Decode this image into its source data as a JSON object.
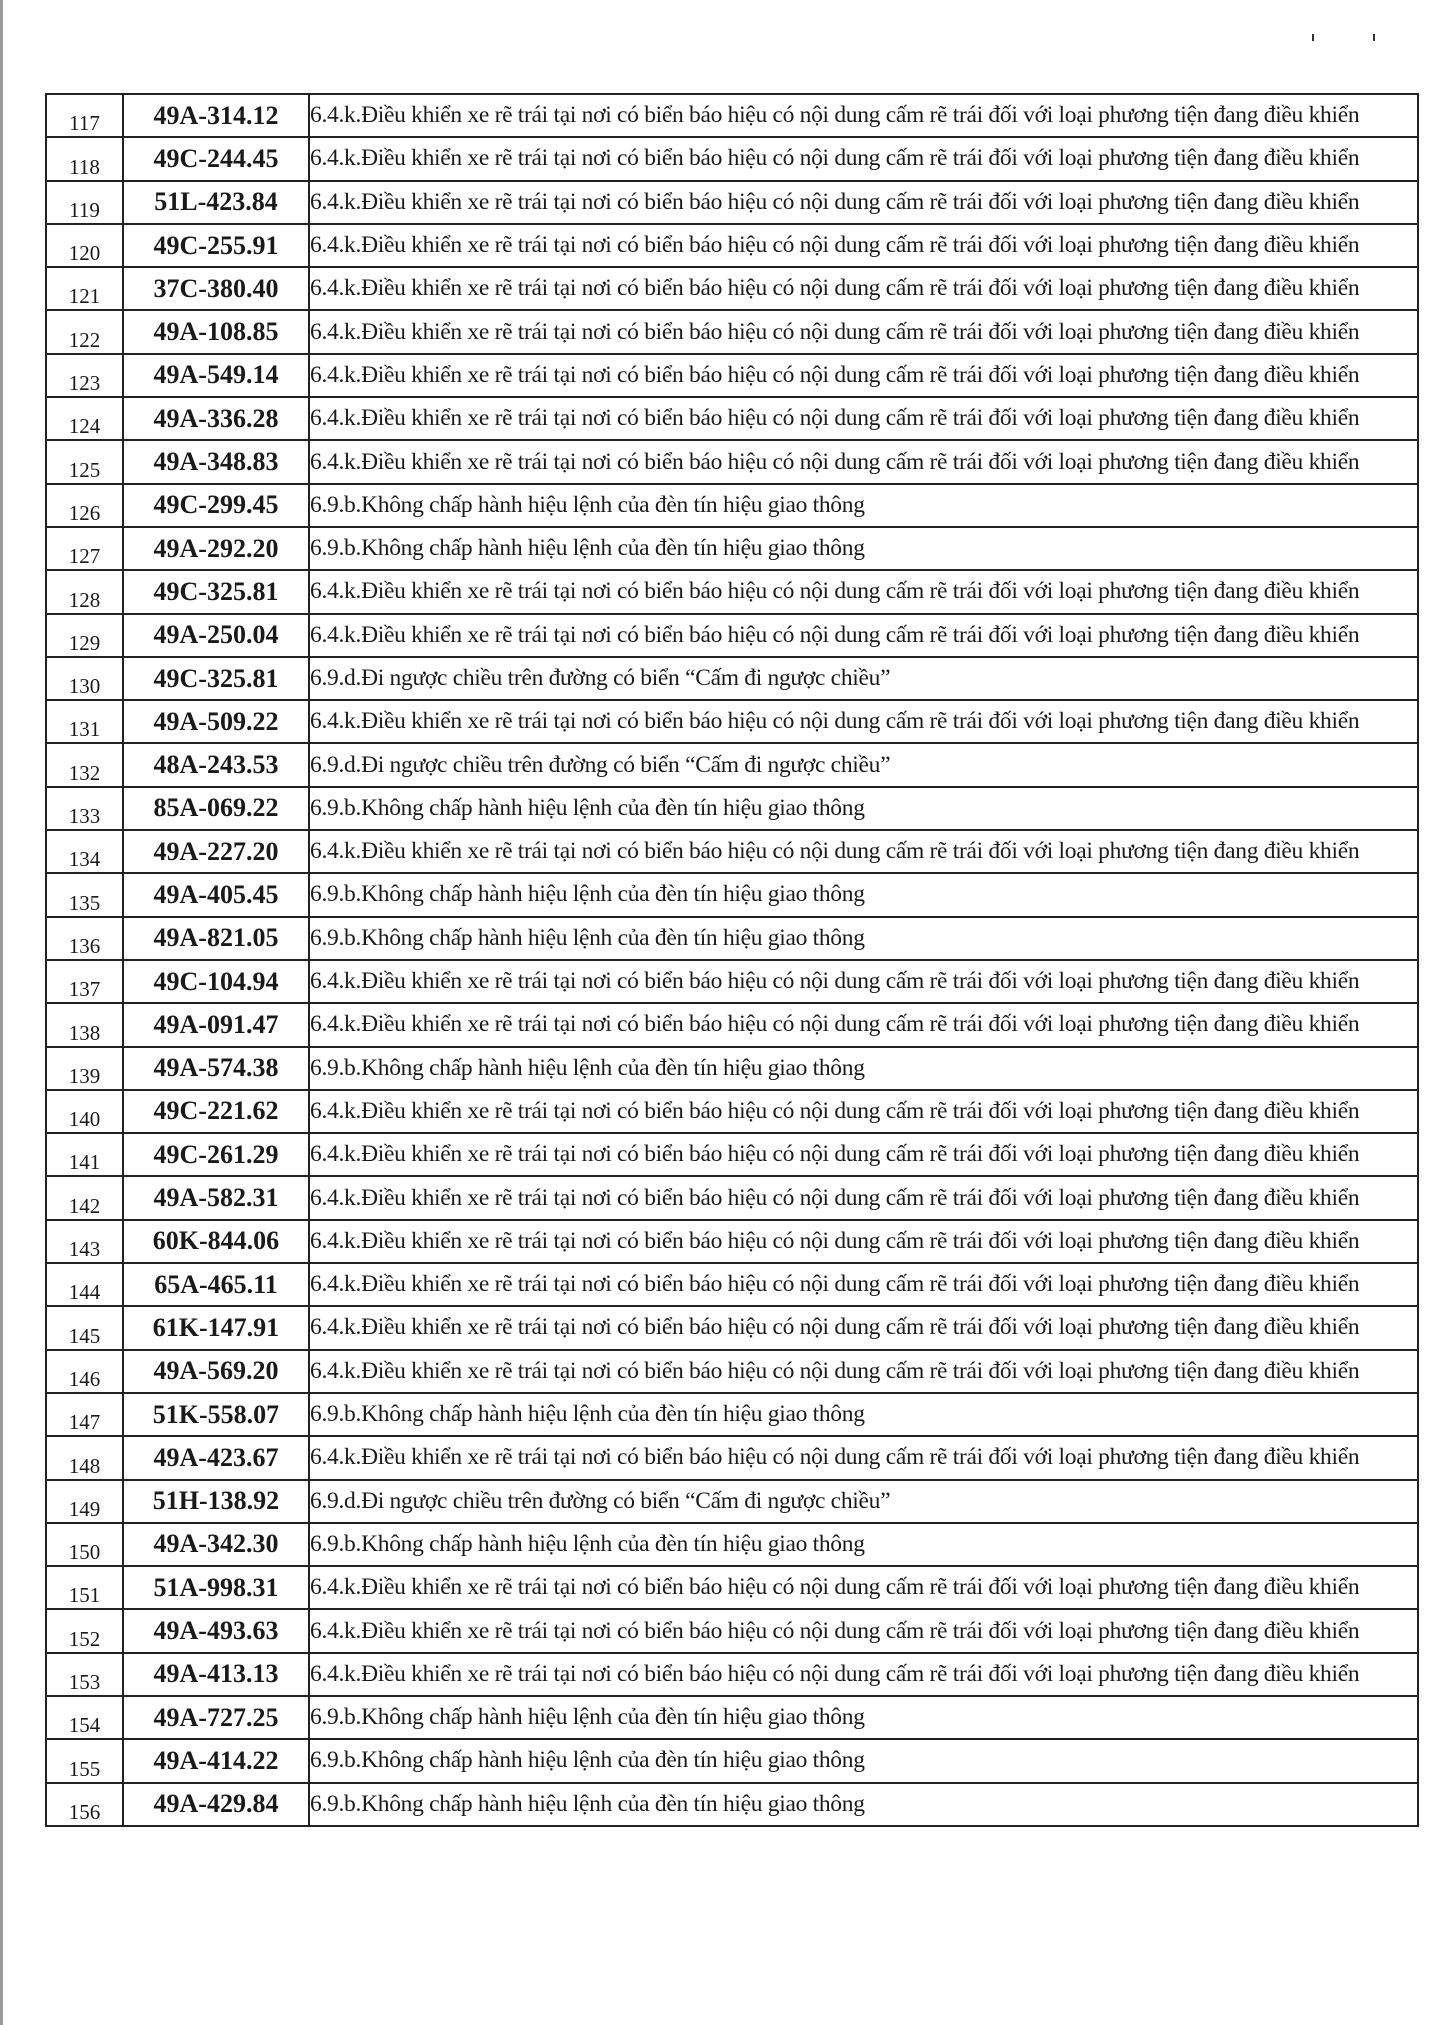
{
  "document": {
    "rows": [
      {
        "no": "117",
        "plate": "49A-314.12",
        "violation": "6.4.k.Điều khiển xe rẽ trái tại nơi có biển báo hiệu có nội dung cấm rẽ trái đối với loại phương tiện đang điều khiển"
      },
      {
        "no": "118",
        "plate": "49C-244.45",
        "violation": "6.4.k.Điều khiển xe rẽ trái tại nơi có biển báo hiệu có nội dung cấm rẽ trái đối với loại phương tiện đang điều khiển"
      },
      {
        "no": "119",
        "plate": "51L-423.84",
        "violation": "6.4.k.Điều khiển xe rẽ trái tại nơi có biển báo hiệu có nội dung cấm rẽ trái đối với loại phương tiện đang điều khiển"
      },
      {
        "no": "120",
        "plate": "49C-255.91",
        "violation": "6.4.k.Điều khiển xe rẽ trái tại nơi có biển báo hiệu có nội dung cấm rẽ trái đối với loại phương tiện đang điều khiển"
      },
      {
        "no": "121",
        "plate": "37C-380.40",
        "violation": "6.4.k.Điều khiển xe rẽ trái tại nơi có biển báo hiệu có nội dung cấm rẽ trái đối với loại phương tiện đang điều khiển"
      },
      {
        "no": "122",
        "plate": "49A-108.85",
        "violation": "6.4.k.Điều khiển xe rẽ trái tại nơi có biển báo hiệu có nội dung cấm rẽ trái đối với loại phương tiện đang điều khiển"
      },
      {
        "no": "123",
        "plate": "49A-549.14",
        "violation": "6.4.k.Điều khiển xe rẽ trái tại nơi có biển báo hiệu có nội dung cấm rẽ trái đối với loại phương tiện đang điều khiển"
      },
      {
        "no": "124",
        "plate": "49A-336.28",
        "violation": "6.4.k.Điều khiển xe rẽ trái tại nơi có biển báo hiệu có nội dung cấm rẽ trái đối với loại phương tiện đang điều khiển"
      },
      {
        "no": "125",
        "plate": "49A-348.83",
        "violation": "6.4.k.Điều khiển xe rẽ trái tại nơi có biển báo hiệu có nội dung cấm rẽ trái đối với loại phương tiện đang điều khiển"
      },
      {
        "no": "126",
        "plate": "49C-299.45",
        "violation": "6.9.b.Không chấp hành hiệu lệnh của đèn tín hiệu giao thông"
      },
      {
        "no": "127",
        "plate": "49A-292.20",
        "violation": "6.9.b.Không chấp hành hiệu lệnh của đèn tín hiệu giao thông"
      },
      {
        "no": "128",
        "plate": "49C-325.81",
        "violation": "6.4.k.Điều khiển xe rẽ trái tại nơi có biển báo hiệu có nội dung cấm rẽ trái đối với loại phương tiện đang điều khiển"
      },
      {
        "no": "129",
        "plate": "49A-250.04",
        "violation": "6.4.k.Điều khiển xe rẽ trái tại nơi có biển báo hiệu có nội dung cấm rẽ trái đối với loại phương tiện đang điều khiển"
      },
      {
        "no": "130",
        "plate": "49C-325.81",
        "violation": "6.9.d.Đi ngược chiều trên đường có biển “Cấm đi ngược chiều”"
      },
      {
        "no": "131",
        "plate": "49A-509.22",
        "violation": "6.4.k.Điều khiển xe rẽ trái tại nơi có biển báo hiệu có nội dung cấm rẽ trái đối với loại phương tiện đang điều khiển"
      },
      {
        "no": "132",
        "plate": "48A-243.53",
        "violation": "6.9.d.Đi ngược chiều trên đường có biển “Cấm đi ngược chiều”"
      },
      {
        "no": "133",
        "plate": "85A-069.22",
        "violation": "6.9.b.Không chấp hành hiệu lệnh của đèn tín hiệu giao thông"
      },
      {
        "no": "134",
        "plate": "49A-227.20",
        "violation": "6.4.k.Điều khiển xe rẽ trái tại nơi có biển báo hiệu có nội dung cấm rẽ trái đối với loại phương tiện đang điều khiển"
      },
      {
        "no": "135",
        "plate": "49A-405.45",
        "violation": "6.9.b.Không chấp hành hiệu lệnh của đèn tín hiệu giao thông"
      },
      {
        "no": "136",
        "plate": "49A-821.05",
        "violation": "6.9.b.Không chấp hành hiệu lệnh của đèn tín hiệu giao thông"
      },
      {
        "no": "137",
        "plate": "49C-104.94",
        "violation": "6.4.k.Điều khiển xe rẽ trái tại nơi có biển báo hiệu có nội dung cấm rẽ trái đối với loại phương tiện đang điều khiển"
      },
      {
        "no": "138",
        "plate": "49A-091.47",
        "violation": "6.4.k.Điều khiển xe rẽ trái tại nơi có biển báo hiệu có nội dung cấm rẽ trái đối với loại phương tiện đang điều khiển"
      },
      {
        "no": "139",
        "plate": "49A-574.38",
        "violation": "6.9.b.Không chấp hành hiệu lệnh của đèn tín hiệu giao thông"
      },
      {
        "no": "140",
        "plate": "49C-221.62",
        "violation": "6.4.k.Điều khiển xe rẽ trái tại nơi có biển báo hiệu có nội dung cấm rẽ trái đối với loại phương tiện đang điều khiển"
      },
      {
        "no": "141",
        "plate": "49C-261.29",
        "violation": "6.4.k.Điều khiển xe rẽ trái tại nơi có biển báo hiệu có nội dung cấm rẽ trái đối với loại phương tiện đang điều khiển"
      },
      {
        "no": "142",
        "plate": "49A-582.31",
        "violation": "6.4.k.Điều khiển xe rẽ trái tại nơi có biển báo hiệu có nội dung cấm rẽ trái đối với loại phương tiện đang điều khiển"
      },
      {
        "no": "143",
        "plate": "60K-844.06",
        "violation": "6.4.k.Điều khiển xe rẽ trái tại nơi có biển báo hiệu có nội dung cấm rẽ trái đối với loại phương tiện đang điều khiển"
      },
      {
        "no": "144",
        "plate": "65A-465.11",
        "violation": "6.4.k.Điều khiển xe rẽ trái tại nơi có biển báo hiệu có nội dung cấm rẽ trái đối với loại phương tiện đang điều khiển"
      },
      {
        "no": "145",
        "plate": "61K-147.91",
        "violation": "6.4.k.Điều khiển xe rẽ trái tại nơi có biển báo hiệu có nội dung cấm rẽ trái đối với loại phương tiện đang điều khiển"
      },
      {
        "no": "146",
        "plate": "49A-569.20",
        "violation": "6.4.k.Điều khiển xe rẽ trái tại nơi có biển báo hiệu có nội dung cấm rẽ trái đối với loại phương tiện đang điều khiển"
      },
      {
        "no": "147",
        "plate": "51K-558.07",
        "violation": "6.9.b.Không chấp hành hiệu lệnh của đèn tín hiệu giao thông"
      },
      {
        "no": "148",
        "plate": "49A-423.67",
        "violation": "6.4.k.Điều khiển xe rẽ trái tại nơi có biển báo hiệu có nội dung cấm rẽ trái đối với loại phương tiện đang điều khiển"
      },
      {
        "no": "149",
        "plate": "51H-138.92",
        "violation": "6.9.d.Đi ngược chiều trên đường có biển “Cấm đi ngược chiều”"
      },
      {
        "no": "150",
        "plate": "49A-342.30",
        "violation": "6.9.b.Không chấp hành hiệu lệnh của đèn tín hiệu giao thông"
      },
      {
        "no": "151",
        "plate": "51A-998.31",
        "violation": "6.4.k.Điều khiển xe rẽ trái tại nơi có biển báo hiệu có nội dung cấm rẽ trái đối với loại phương tiện đang điều khiển"
      },
      {
        "no": "152",
        "plate": "49A-493.63",
        "violation": "6.4.k.Điều khiển xe rẽ trái tại nơi có biển báo hiệu có nội dung cấm rẽ trái đối với loại phương tiện đang điều khiển"
      },
      {
        "no": "153",
        "plate": "49A-413.13",
        "violation": "6.4.k.Điều khiển xe rẽ trái tại nơi có biển báo hiệu có nội dung cấm rẽ trái đối với loại phương tiện đang điều khiển"
      },
      {
        "no": "154",
        "plate": "49A-727.25",
        "violation": "6.9.b.Không chấp hành hiệu lệnh của đèn tín hiệu giao thông"
      },
      {
        "no": "155",
        "plate": "49A-414.22",
        "violation": "6.9.b.Không chấp hành hiệu lệnh của đèn tín hiệu giao thông"
      },
      {
        "no": "156",
        "plate": "49A-429.84",
        "violation": "6.9.b.Không chấp hành hiệu lệnh của đèn tín hiệu giao thông"
      }
    ]
  }
}
